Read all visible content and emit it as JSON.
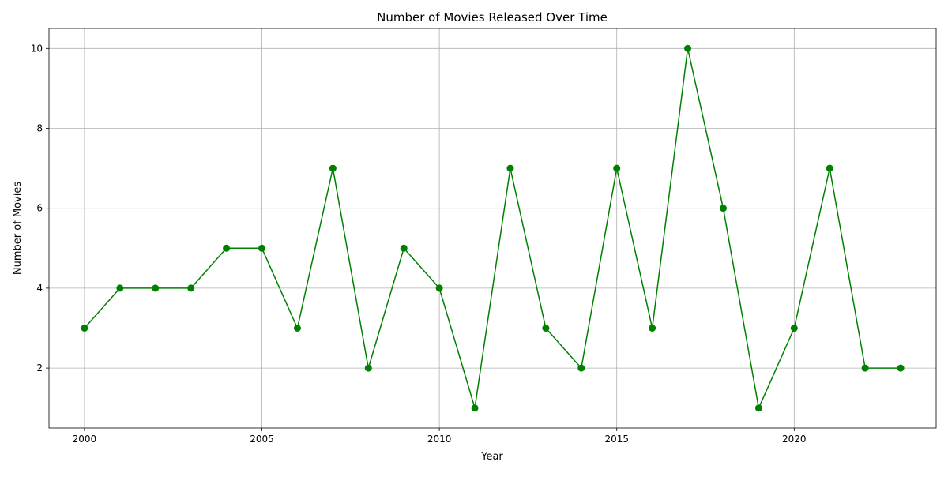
{
  "chart_data": {
    "type": "line",
    "title": "Number of Movies Released Over Time",
    "xlabel": "Year",
    "ylabel": "Number of Movies",
    "xlim": [
      1999,
      2024
    ],
    "ylim": [
      0.5,
      10.5
    ],
    "xticks": [
      2000,
      2005,
      2010,
      2015,
      2020
    ],
    "yticks": [
      2,
      4,
      6,
      8,
      10
    ],
    "grid": true,
    "legend": "none",
    "series": [
      {
        "color": "#008000",
        "marker": "circle",
        "x": [
          2000,
          2001,
          2002,
          2003,
          2004,
          2005,
          2006,
          2007,
          2008,
          2009,
          2010,
          2011,
          2012,
          2013,
          2014,
          2015,
          2016,
          2017,
          2018,
          2019,
          2020,
          2021,
          2022,
          2023
        ],
        "y": [
          3,
          4,
          4,
          4,
          5,
          5,
          3,
          7,
          2,
          5,
          4,
          1,
          7,
          3,
          2,
          7,
          3,
          10,
          6,
          1,
          3,
          7,
          2,
          2
        ]
      }
    ]
  }
}
